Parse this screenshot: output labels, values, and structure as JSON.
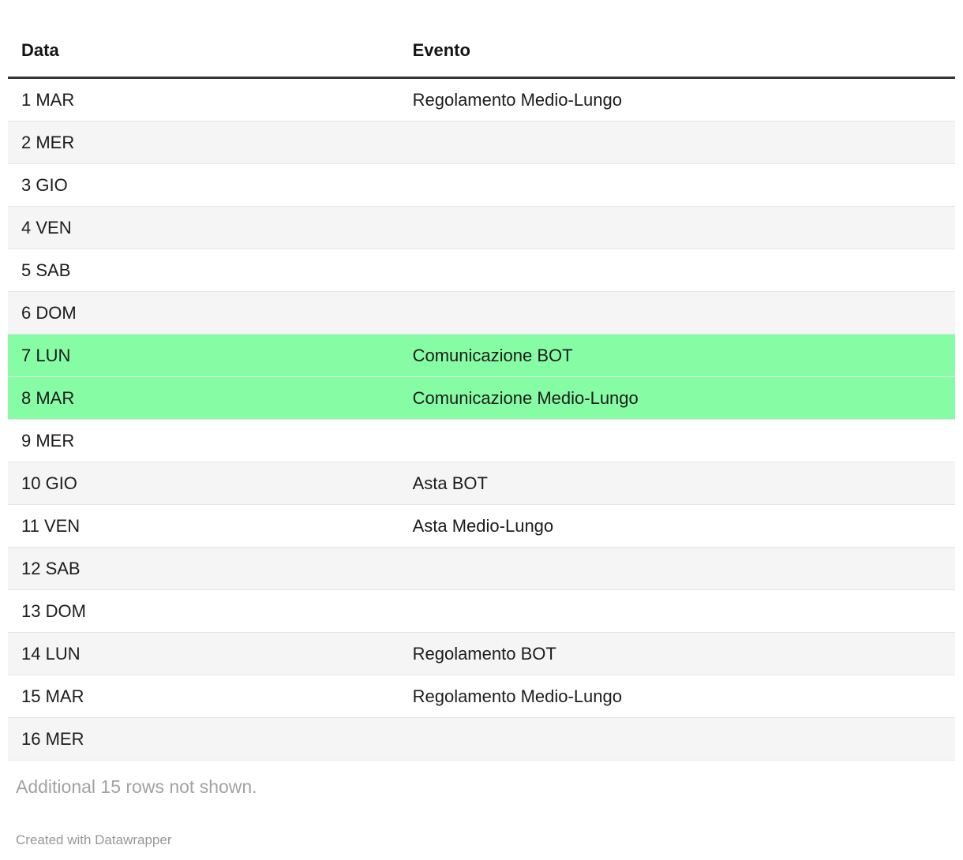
{
  "chart_data": {
    "type": "table",
    "columns": [
      "Data",
      "Evento"
    ],
    "rows": [
      [
        "1 MAR",
        "Regolamento Medio-Lungo"
      ],
      [
        "2 MER",
        ""
      ],
      [
        "3 GIO",
        ""
      ],
      [
        "4 VEN",
        ""
      ],
      [
        "5 SAB",
        ""
      ],
      [
        "6 DOM",
        ""
      ],
      [
        "7 LUN",
        "Comunicazione BOT"
      ],
      [
        "8 MAR",
        "Comunicazione Medio-Lungo"
      ],
      [
        "9 MER",
        ""
      ],
      [
        "10 GIO",
        "Asta BOT"
      ],
      [
        "11 VEN",
        "Asta Medio-Lungo"
      ],
      [
        "12 SAB",
        ""
      ],
      [
        "13 DOM",
        ""
      ],
      [
        "14 LUN",
        "Regolamento BOT"
      ],
      [
        "15 MAR",
        "Regolamento Medio-Lungo"
      ],
      [
        "16 MER",
        ""
      ]
    ],
    "highlighted_row_indices": [
      6,
      7
    ],
    "layout_hints": {
      "zebra_striping": true,
      "striped_rows": "even rows (2,4,6,...)",
      "legend": "none",
      "grid": "horizontal row separators only"
    },
    "footer_note": "Additional 15 rows not shown.",
    "attribution": "Created with Datawrapper"
  },
  "colors": {
    "highlight_green": "#86fca4",
    "stripe_gray": "#f5f5f5",
    "row_border": "#e6e6e6",
    "header_rule": "#333333",
    "body_text": "#1c1c1c",
    "muted_text": "#a2a2a2",
    "attribution_text": "#979797"
  }
}
